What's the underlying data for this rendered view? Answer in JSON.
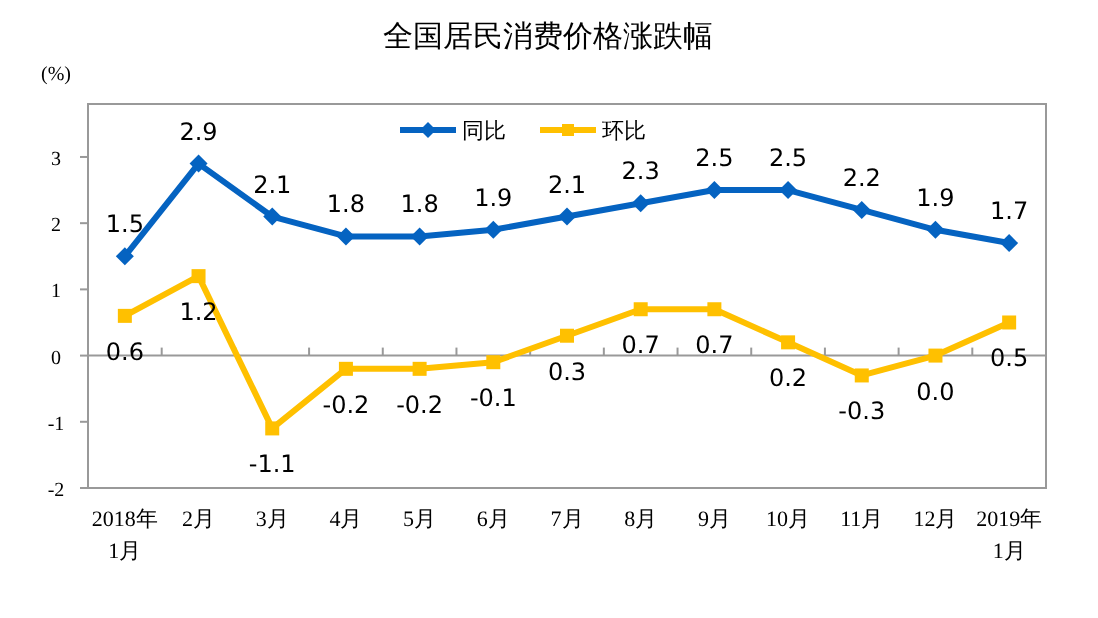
{
  "chart_data": {
    "type": "line",
    "title": "全国居民消费价格涨跌幅",
    "ylabel": "(%)",
    "categories": [
      "2018年\n1月",
      "2月",
      "3月",
      "4月",
      "5月",
      "6月",
      "7月",
      "8月",
      "9月",
      "10月",
      "11月",
      "12月",
      "2019年\n1月"
    ],
    "series": [
      {
        "name": "同比",
        "color": "#0563c1",
        "marker": "diamond",
        "values": [
          1.5,
          2.9,
          2.1,
          1.8,
          1.8,
          1.9,
          2.1,
          2.3,
          2.5,
          2.5,
          2.2,
          1.9,
          1.7
        ],
        "value_labels": [
          "1.5",
          "2.9",
          "2.1",
          "1.8",
          "1.8",
          "1.9",
          "2.1",
          "2.3",
          "2.5",
          "2.5",
          "2.2",
          "1.9",
          "1.7"
        ]
      },
      {
        "name": "环比",
        "color": "#ffc000",
        "marker": "square",
        "values": [
          0.6,
          1.2,
          -1.1,
          -0.2,
          -0.2,
          -0.1,
          0.3,
          0.7,
          0.7,
          0.2,
          -0.3,
          0.0,
          0.5
        ],
        "value_labels": [
          "0.6",
          "1.2",
          "-1.1",
          "-0.2",
          "-0.2",
          "-0.1",
          "0.3",
          "0.7",
          "0.7",
          "0.2",
          "-0.3",
          "0.0",
          "0.5"
        ]
      }
    ],
    "ylim": [
      -2,
      3.8
    ],
    "yticks": [
      -2,
      -1,
      0,
      1,
      2,
      3
    ],
    "legend": "top",
    "line_style": "solid"
  }
}
